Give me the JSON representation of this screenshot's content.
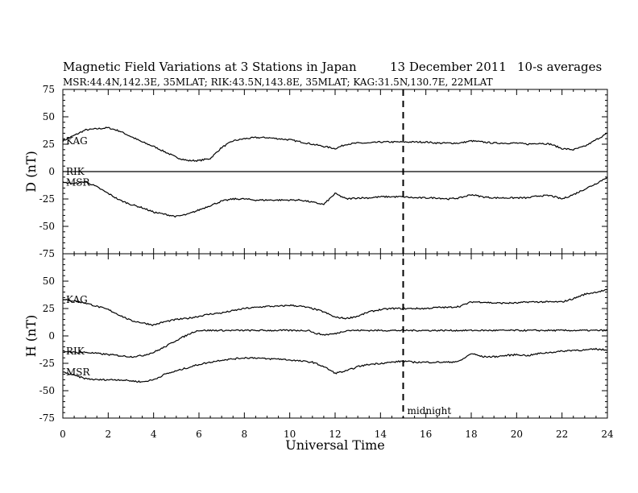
{
  "chart_data": {
    "type": "line",
    "title": "Magnetic Field Variations at 3 Stations in Japan",
    "date": "13 December 2011",
    "averaging": "10-s averages",
    "subtitle": "MSR:44.4N,142.3E, 35MLAT;  RIK:43.5N,143.8E, 35MLAT;  KAG:31.5N,130.7E, 22MLAT",
    "xlabel": "Universal Time",
    "xlim": [
      0,
      24
    ],
    "xticks": [
      0,
      2,
      4,
      6,
      8,
      10,
      12,
      14,
      16,
      18,
      20,
      22,
      24
    ],
    "annotation": {
      "text": "midnight",
      "x": 15
    },
    "panels": [
      {
        "ylabel": "D (nT)",
        "ylim": [
          -75,
          75
        ],
        "yticks": [
          75,
          50,
          25,
          0,
          -25,
          -50,
          -75
        ],
        "series": [
          {
            "name": "KAG",
            "x": [
              0,
              0.5,
              1,
              1.5,
              2,
              2.5,
              3,
              3.5,
              4,
              4.5,
              5,
              5.5,
              6,
              6.5,
              7,
              7.5,
              8,
              8.5,
              9,
              9.5,
              10,
              10.5,
              11,
              11.5,
              12,
              12.5,
              13,
              13.5,
              14,
              14.5,
              15,
              15.5,
              16,
              16.5,
              17,
              17.5,
              18,
              18.5,
              19,
              19.5,
              20,
              20.5,
              21,
              21.5,
              22,
              22.5,
              23,
              23.5,
              24
            ],
            "values": [
              28,
              33,
              38,
              39,
              40,
              37,
              32,
              27,
              23,
              18,
              13,
              10,
              10,
              12,
              22,
              28,
              30,
              31,
              31,
              30,
              29,
              27,
              25,
              23,
              21,
              25,
              26,
              26,
              27,
              27,
              27,
              27,
              27,
              26,
              26,
              26,
              28,
              27,
              26,
              26,
              26,
              25,
              26,
              25,
              21,
              20,
              23,
              29,
              35
            ]
          },
          {
            "name": "RIK",
            "x": [
              0,
              24
            ],
            "values": [
              0,
              0
            ]
          },
          {
            "name": "MSR",
            "x": [
              0,
              0.5,
              1,
              1.5,
              2,
              2.5,
              3,
              3.5,
              4,
              4.5,
              5,
              5.5,
              6,
              6.5,
              7,
              7.5,
              8,
              8.5,
              9,
              9.5,
              10,
              10.5,
              11,
              11.5,
              12,
              12.5,
              13,
              13.5,
              14,
              14.5,
              15,
              15.5,
              16,
              16.5,
              17,
              17.5,
              18,
              18.5,
              19,
              19.5,
              20,
              20.5,
              21,
              21.5,
              22,
              22.5,
              23,
              23.5,
              24
            ],
            "values": [
              -10,
              -11,
              -9,
              -14,
              -20,
              -26,
              -30,
              -33,
              -37,
              -39,
              -41,
              -39,
              -35,
              -31,
              -27,
              -25,
              -25,
              -26,
              -26,
              -26,
              -26,
              -26,
              -28,
              -30,
              -20,
              -25,
              -24,
              -24,
              -23,
              -23,
              -23,
              -24,
              -24,
              -24,
              -25,
              -24,
              -21,
              -23,
              -24,
              -24,
              -24,
              -24,
              -22,
              -22,
              -25,
              -21,
              -16,
              -11,
              -5
            ]
          }
        ]
      },
      {
        "ylabel": "H (nT)",
        "ylim": [
          -75,
          75
        ],
        "yticks": [
          75,
          50,
          25,
          0,
          -25,
          -50,
          -75
        ],
        "series": [
          {
            "name": "KAG",
            "x": [
              0,
              0.5,
              1,
              1.5,
              2,
              2.5,
              3,
              3.5,
              4,
              4.5,
              5,
              5.5,
              6,
              6.5,
              7,
              7.5,
              8,
              8.5,
              9,
              9.5,
              10,
              10.5,
              11,
              11.5,
              12,
              12.5,
              13,
              13.5,
              14,
              14.5,
              15,
              15.5,
              16,
              16.5,
              17,
              17.5,
              18,
              18.5,
              19,
              19.5,
              20,
              20.5,
              21,
              21.5,
              22,
              22.5,
              23,
              23.5,
              24
            ],
            "values": [
              33,
              32,
              30,
              27,
              24,
              19,
              14,
              12,
              10,
              13,
              15,
              16,
              18,
              20,
              21,
              23,
              25,
              26,
              27,
              27,
              28,
              27,
              25,
              22,
              17,
              16,
              18,
              22,
              24,
              25,
              25,
              25,
              25,
              26,
              26,
              27,
              31,
              31,
              30,
              30,
              30,
              31,
              31,
              31,
              31,
              34,
              38,
              40,
              42
            ]
          },
          {
            "name": "RIK",
            "x": [
              0,
              0.5,
              1,
              1.5,
              2,
              2.5,
              3,
              3.5,
              4,
              4.5,
              5,
              5.5,
              5.8,
              6,
              7,
              8,
              9,
              10,
              10.9,
              11,
              11.5,
              12,
              12.5,
              13,
              24
            ],
            "values": [
              -14,
              -15,
              -15,
              -16,
              -17,
              -18,
              -19,
              -18,
              -15,
              -10,
              -4,
              1,
              4,
              5,
              5,
              5,
              5,
              5,
              5,
              3,
              1,
              2,
              5,
              5,
              5
            ]
          },
          {
            "name": "MSR",
            "x": [
              0,
              0.5,
              1,
              1.5,
              2,
              2.5,
              3,
              3.5,
              4,
              4.5,
              5,
              5.5,
              6,
              6.5,
              7,
              7.5,
              8,
              8.5,
              9,
              9.5,
              10,
              10.5,
              11,
              11.5,
              12,
              12.5,
              13,
              13.5,
              14,
              14.5,
              15,
              15.5,
              16,
              16.5,
              17,
              17.5,
              18,
              18.5,
              19,
              19.5,
              20,
              20.5,
              21,
              21.5,
              22,
              22.5,
              23,
              23.5,
              24
            ],
            "values": [
              -33,
              -36,
              -39,
              -40,
              -40,
              -40,
              -41,
              -42,
              -40,
              -35,
              -32,
              -29,
              -26,
              -24,
              -22,
              -21,
              -20,
              -20,
              -21,
              -21,
              -22,
              -23,
              -24,
              -28,
              -34,
              -32,
              -28,
              -26,
              -25,
              -24,
              -23,
              -24,
              -24,
              -24,
              -24,
              -23,
              -16,
              -19,
              -19,
              -18,
              -17,
              -18,
              -16,
              -15,
              -14,
              -13,
              -13,
              -12,
              -13
            ]
          }
        ]
      }
    ]
  }
}
